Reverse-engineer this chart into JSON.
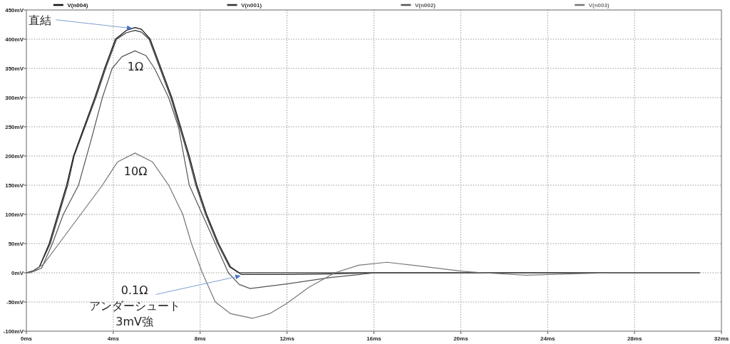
{
  "chart_data": {
    "type": "line",
    "grid": true,
    "legend": "top",
    "xlim": [
      0,
      32
    ],
    "ylim": [
      -100,
      450
    ],
    "xticks": [
      {
        "value": 0,
        "label": "0ms"
      },
      {
        "value": 4,
        "label": "4ms"
      },
      {
        "value": 8,
        "label": "8ms"
      },
      {
        "value": 12,
        "label": "12ms"
      },
      {
        "value": 16,
        "label": "16ms"
      },
      {
        "value": 20,
        "label": "20ms"
      },
      {
        "value": 24,
        "label": "24ms"
      },
      {
        "value": 28,
        "label": "28ms"
      },
      {
        "value": 32,
        "label": "32ms"
      }
    ],
    "yticks": [
      {
        "value": -100,
        "label": "-100mV"
      },
      {
        "value": -50,
        "label": "-50mV"
      },
      {
        "value": 0,
        "label": "0mV"
      },
      {
        "value": 50,
        "label": "50mV"
      },
      {
        "value": 100,
        "label": "100mV"
      },
      {
        "value": 150,
        "label": "150mV"
      },
      {
        "value": 200,
        "label": "200mV"
      },
      {
        "value": 250,
        "label": "250mV"
      },
      {
        "value": 300,
        "label": "300mV"
      },
      {
        "value": 350,
        "label": "350mV"
      },
      {
        "value": 400,
        "label": "400mV"
      },
      {
        "value": 450,
        "label": "450mV"
      }
    ],
    "series": [
      {
        "name": "V(n004)",
        "color": "#111111",
        "x": [
          0,
          0.3,
          0.6,
          1.05,
          1.45,
          1.85,
          2.17,
          2.66,
          3.15,
          3.6,
          4.1,
          4.6,
          5.0,
          5.3,
          5.7,
          6.2,
          6.7,
          7.1,
          7.5,
          7.85,
          8.3,
          8.85,
          9.4,
          9.8,
          10.5,
          31
        ],
        "values": [
          0,
          3,
          10,
          50,
          100,
          150,
          200,
          250,
          300,
          350,
          400,
          415,
          420,
          417,
          400,
          350,
          300,
          250,
          200,
          150,
          100,
          50,
          10,
          0,
          0,
          0
        ]
      },
      {
        "name": "V(n001)",
        "color": "#333333",
        "x": [
          0,
          0.3,
          0.6,
          1.1,
          1.5,
          1.9,
          2.2,
          2.7,
          3.2,
          3.65,
          4.15,
          4.6,
          5.0,
          5.3,
          5.65,
          6.15,
          6.65,
          7.05,
          7.45,
          7.8,
          8.25,
          8.8,
          9.35,
          9.9,
          12,
          14,
          16,
          31
        ],
        "values": [
          0,
          3,
          10,
          50,
          100,
          150,
          200,
          250,
          300,
          350,
          400,
          411,
          415,
          412,
          400,
          350,
          300,
          250,
          200,
          150,
          100,
          50,
          10,
          -3,
          -3,
          -2,
          0,
          0
        ]
      },
      {
        "name": "V(n002)",
        "color": "#555555",
        "x": [
          0,
          0.3,
          0.7,
          1.2,
          1.7,
          2.4,
          3.0,
          3.5,
          3.95,
          4.4,
          5.0,
          5.5,
          5.9,
          6.55,
          7.0,
          7.5,
          8.1,
          8.7,
          9.3,
          9.8,
          10.3,
          12,
          14,
          16.1,
          20,
          31
        ],
        "values": [
          0,
          2,
          8,
          50,
          100,
          150,
          230,
          300,
          350,
          370,
          380,
          372,
          350,
          300,
          250,
          150,
          100,
          50,
          0,
          -20,
          -27,
          -19,
          -8,
          0,
          0,
          0
        ]
      },
      {
        "name": "V(n003)",
        "color": "#777777",
        "x": [
          0,
          0.2,
          0.8,
          1.5,
          2.5,
          3.5,
          4.2,
          5.0,
          5.8,
          6.55,
          7.2,
          7.6,
          8.1,
          8.7,
          9.4,
          10.4,
          11.2,
          12,
          13,
          14.2,
          15.3,
          16.6,
          18,
          20,
          21,
          23,
          25,
          27,
          31
        ],
        "values": [
          0,
          0,
          15,
          50,
          100,
          150,
          190,
          205,
          190,
          150,
          100,
          50,
          0,
          -50,
          -70,
          -78,
          -70,
          -52,
          -25,
          0,
          13,
          18,
          12,
          3,
          0,
          -4,
          -2,
          0,
          0
        ]
      }
    ],
    "annotations": [
      {
        "text": "直結",
        "x": 4.9,
        "y": 421
      },
      "1Ω",
      "10Ω",
      {
        "text": "0.1Ω\nアンダーシュート\n3mV強",
        "x": 9.9,
        "y": -3
      }
    ]
  }
}
